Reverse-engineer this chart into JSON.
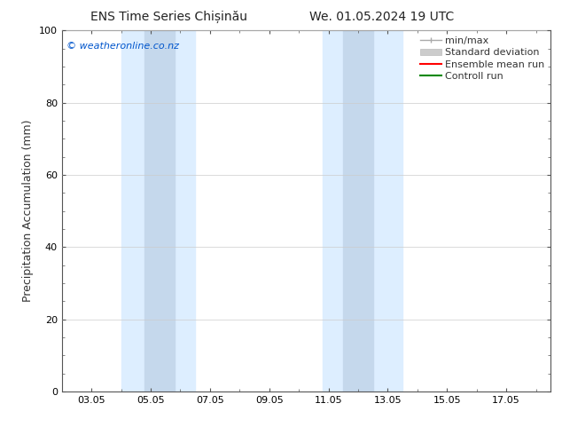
{
  "title_left": "ENS Time Series Chișinău",
  "title_right": "We. 01.05.2024 19 UTC",
  "ylabel": "Precipitation Accumulation (mm)",
  "watermark": "© weatheronline.co.nz",
  "watermark_color": "#0055cc",
  "ylim": [
    0,
    100
  ],
  "yticks": [
    0,
    20,
    40,
    60,
    80,
    100
  ],
  "xtick_labels": [
    "03.05",
    "05.05",
    "07.05",
    "09.05",
    "11.05",
    "13.05",
    "15.05",
    "17.05"
  ],
  "xtick_positions": [
    2,
    4,
    6,
    8,
    10,
    12,
    14,
    16
  ],
  "x_range": [
    1,
    17.5
  ],
  "band1_outer": [
    3.0,
    5.5
  ],
  "band1_inner": [
    3.8,
    4.8
  ],
  "band2_outer": [
    9.8,
    12.5
  ],
  "band2_inner": [
    10.5,
    11.5
  ],
  "band_outer_color": "#ddeeff",
  "band_inner_color": "#c5d8ec",
  "bg_color": "#ffffff",
  "grid_color": "#cccccc",
  "spine_color": "#555555",
  "legend_items": [
    {
      "label": "min/max",
      "color": "#aaaaaa",
      "lw": 1.5
    },
    {
      "label": "Standard deviation",
      "color": "#cccccc",
      "lw": 6
    },
    {
      "label": "Ensemble mean run",
      "color": "#ff0000",
      "lw": 1.5
    },
    {
      "label": "Controll run",
      "color": "#008800",
      "lw": 1.5
    }
  ],
  "font_size_title": 10,
  "font_size_axis": 9,
  "font_size_ticks": 8,
  "font_size_legend": 8,
  "font_size_watermark": 8
}
